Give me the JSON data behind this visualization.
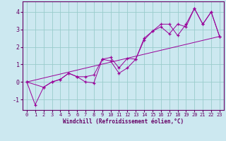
{
  "xlabel": "Windchill (Refroidissement éolien,°C)",
  "bg_color": "#cce8f0",
  "line_color": "#990099",
  "grid_color": "#99cccc",
  "spine_color": "#660066",
  "xlim": [
    -0.5,
    23.5
  ],
  "ylim": [
    -1.6,
    4.6
  ],
  "yticks": [
    -1,
    0,
    1,
    2,
    3,
    4
  ],
  "xticks": [
    0,
    1,
    2,
    3,
    4,
    5,
    6,
    7,
    8,
    9,
    10,
    11,
    12,
    13,
    14,
    15,
    16,
    17,
    18,
    19,
    20,
    21,
    22,
    23
  ],
  "series1_x": [
    0,
    1,
    2,
    3,
    4,
    5,
    6,
    7,
    8,
    9,
    10,
    11,
    12,
    13,
    14,
    15,
    16,
    17,
    18,
    19,
    20,
    21,
    22,
    23
  ],
  "series1_y": [
    0.0,
    -1.3,
    -0.3,
    0.0,
    0.15,
    0.5,
    0.3,
    0.0,
    -0.05,
    1.3,
    1.2,
    0.5,
    0.8,
    1.3,
    2.4,
    2.9,
    3.3,
    3.3,
    2.65,
    3.3,
    4.2,
    3.3,
    4.0,
    2.6
  ],
  "series2_x": [
    0,
    2,
    3,
    4,
    5,
    6,
    7,
    8,
    9,
    10,
    11,
    12,
    13,
    14,
    15,
    16,
    17,
    18,
    19,
    20,
    21,
    22,
    23
  ],
  "series2_y": [
    0.0,
    -0.3,
    0.0,
    0.15,
    0.5,
    0.3,
    0.3,
    0.4,
    1.3,
    1.4,
    0.8,
    1.35,
    1.3,
    2.5,
    2.9,
    3.15,
    2.75,
    3.3,
    3.15,
    4.2,
    3.3,
    4.0,
    2.6
  ],
  "series3_x": [
    0,
    23
  ],
  "series3_y": [
    0.0,
    2.6
  ],
  "tick_fontsize": 5,
  "xlabel_fontsize": 5.5,
  "lw": 0.7,
  "ms": 2.5
}
